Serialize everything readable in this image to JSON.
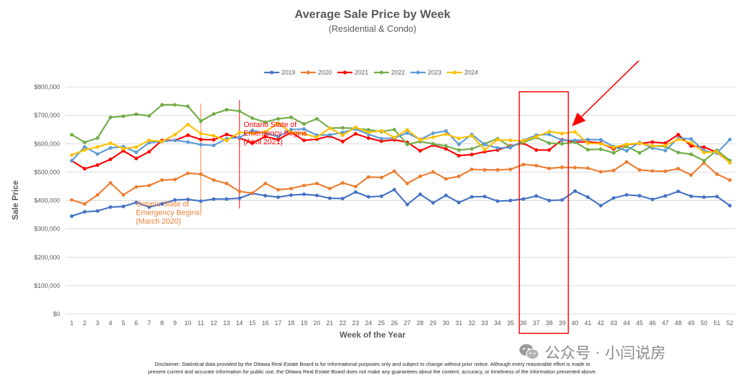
{
  "chart_data": {
    "type": "line",
    "title": "Average Sale Price by Week",
    "subtitle": "(Residential & Condo)",
    "xlabel": "Week of the Year",
    "ylabel": "Sale Price",
    "ylim": [
      0,
      800000
    ],
    "yticks": [
      {
        "value": 0,
        "label": "$0"
      },
      {
        "value": 100000,
        "label": "$100,000"
      },
      {
        "value": 200000,
        "label": "$200,000"
      },
      {
        "value": 300000,
        "label": "$300,000"
      },
      {
        "value": 400000,
        "label": "$400,000"
      },
      {
        "value": 500000,
        "label": "$500,000"
      },
      {
        "value": 600000,
        "label": "$600,000"
      },
      {
        "value": 700000,
        "label": "$700,000"
      },
      {
        "value": 800000,
        "label": "$800,000"
      }
    ],
    "x": [
      1,
      2,
      3,
      4,
      5,
      6,
      7,
      8,
      9,
      10,
      11,
      12,
      13,
      14,
      15,
      16,
      17,
      18,
      19,
      20,
      21,
      22,
      23,
      24,
      25,
      26,
      27,
      28,
      29,
      30,
      31,
      32,
      33,
      34,
      35,
      36,
      37,
      38,
      39,
      40,
      41,
      42,
      43,
      44,
      45,
      46,
      47,
      48,
      49,
      50,
      51,
      52
    ],
    "grid": "horizontal",
    "legend_position": "top",
    "series": [
      {
        "name": "2019",
        "color": "#4472C4",
        "values": [
          345000,
          360000,
          363000,
          377000,
          379000,
          393000,
          377000,
          388000,
          402000,
          404000,
          398000,
          405000,
          405000,
          408000,
          425000,
          417000,
          412000,
          419000,
          422000,
          418000,
          408000,
          407000,
          430000,
          413000,
          415000,
          438000,
          386000,
          422000,
          392000,
          418000,
          393000,
          413000,
          414000,
          398000,
          400000,
          405000,
          416000,
          400000,
          402000,
          433000,
          412000,
          382000,
          409000,
          420000,
          417000,
          404000,
          416000,
          432000,
          415000,
          412000,
          414000,
          382000
        ]
      },
      {
        "name": "2020",
        "color": "#ED7D31",
        "values": [
          402000,
          388000,
          420000,
          462000,
          420000,
          448000,
          453000,
          472000,
          474000,
          496000,
          493000,
          472000,
          460000,
          432000,
          426000,
          460000,
          438000,
          442000,
          453000,
          460000,
          442000,
          462000,
          449000,
          483000,
          481000,
          503000,
          460000,
          485000,
          501000,
          476000,
          485000,
          510000,
          508000,
          508000,
          510000,
          527000,
          523000,
          513000,
          517000,
          516000,
          514000,
          501000,
          506000,
          536000,
          508000,
          504000,
          503000,
          512000,
          490000,
          533000,
          493000,
          472000
        ]
      },
      {
        "name": "2021",
        "color": "#FF0000",
        "values": [
          540000,
          512000,
          525000,
          545000,
          575000,
          548000,
          572000,
          612000,
          612000,
          630000,
          615000,
          614000,
          633000,
          620000,
          603000,
          625000,
          615000,
          640000,
          612000,
          616000,
          627000,
          608000,
          635000,
          620000,
          609000,
          614000,
          605000,
          575000,
          595000,
          582000,
          558000,
          562000,
          572000,
          578000,
          592000,
          602000,
          578000,
          578000,
          614000,
          606000,
          607000,
          602000,
          582000,
          597000,
          601000,
          606000,
          602000,
          632000,
          592000,
          588000,
          570000,
          534000
        ]
      },
      {
        "name": "2022",
        "color": "#70AD47",
        "values": [
          632000,
          605000,
          620000,
          693000,
          697000,
          704000,
          698000,
          737000,
          737000,
          732000,
          680000,
          705000,
          720000,
          715000,
          690000,
          676000,
          688000,
          693000,
          670000,
          688000,
          655000,
          656000,
          654000,
          649000,
          643000,
          650000,
          598000,
          608000,
          600000,
          592000,
          578000,
          582000,
          600000,
          618000,
          590000,
          605000,
          622000,
          602000,
          600000,
          606000,
          579000,
          581000,
          568000,
          591000,
          568000,
          592000,
          591000,
          569000,
          563000,
          540000,
          577000,
          541000
        ]
      },
      {
        "name": "2023",
        "color": "#5B9BD5",
        "values": [
          540000,
          589000,
          564000,
          585000,
          590000,
          570000,
          604000,
          608000,
          612000,
          606000,
          597000,
          594000,
          618000,
          622000,
          647000,
          637000,
          625000,
          650000,
          652000,
          630000,
          631000,
          640000,
          652000,
          633000,
          618000,
          620000,
          638000,
          615000,
          637000,
          645000,
          598000,
          633000,
          597000,
          585000,
          586000,
          612000,
          630000,
          633000,
          612000,
          612000,
          615000,
          614000,
          590000,
          575000,
          605000,
          585000,
          576000,
          620000,
          617000,
          575000,
          567000,
          615000
        ]
      },
      {
        "name": "2024",
        "color": "#FFC000",
        "values": [
          560000,
          578000,
          589000,
          602000,
          583000,
          588000,
          612000,
          608000,
          632000,
          668000,
          636000,
          628000,
          611000,
          640000,
          637000,
          642000,
          672000,
          640000,
          635000,
          623000,
          655000,
          630000,
          658000,
          640000,
          646000,
          622000,
          649000,
          614000,
          623000,
          634000,
          619000,
          628000,
          579000,
          614000,
          612000,
          610000,
          625000,
          643000,
          636000,
          642000,
          602000,
          600000,
          587000,
          598000,
          602000,
          592000,
          594000,
          616000,
          603000,
          569000,
          572000,
          533000
        ]
      }
    ],
    "annotations": [
      {
        "text_lines": [
          "Ontario State of",
          "Emergency Begins",
          "(March 2020)"
        ],
        "color": "#ED7D31",
        "week": 11
      },
      {
        "text_lines": [
          "Ontario State of",
          "Emergency Begins",
          "(April 2021)"
        ],
        "color": "#FF0000",
        "week": 14
      }
    ],
    "highlight": {
      "from_week": 36,
      "to_week": 39,
      "color": "#FF0000"
    }
  },
  "disclaimer": {
    "line1": "Disclaimer: Statistical data provided by the Ottawa Real Estate Board is for informational purposes only and subject to change without prior notice. Although every reasonable effort is made to",
    "line2": "present current and accurate information for public use, the Ottawa Real Estate Board does not make any guarantees about the content, accuracy, or timeliness of the information presented above."
  },
  "watermark": {
    "text": "公众号 · 小闫说房",
    "icon": "wechat-icon"
  }
}
